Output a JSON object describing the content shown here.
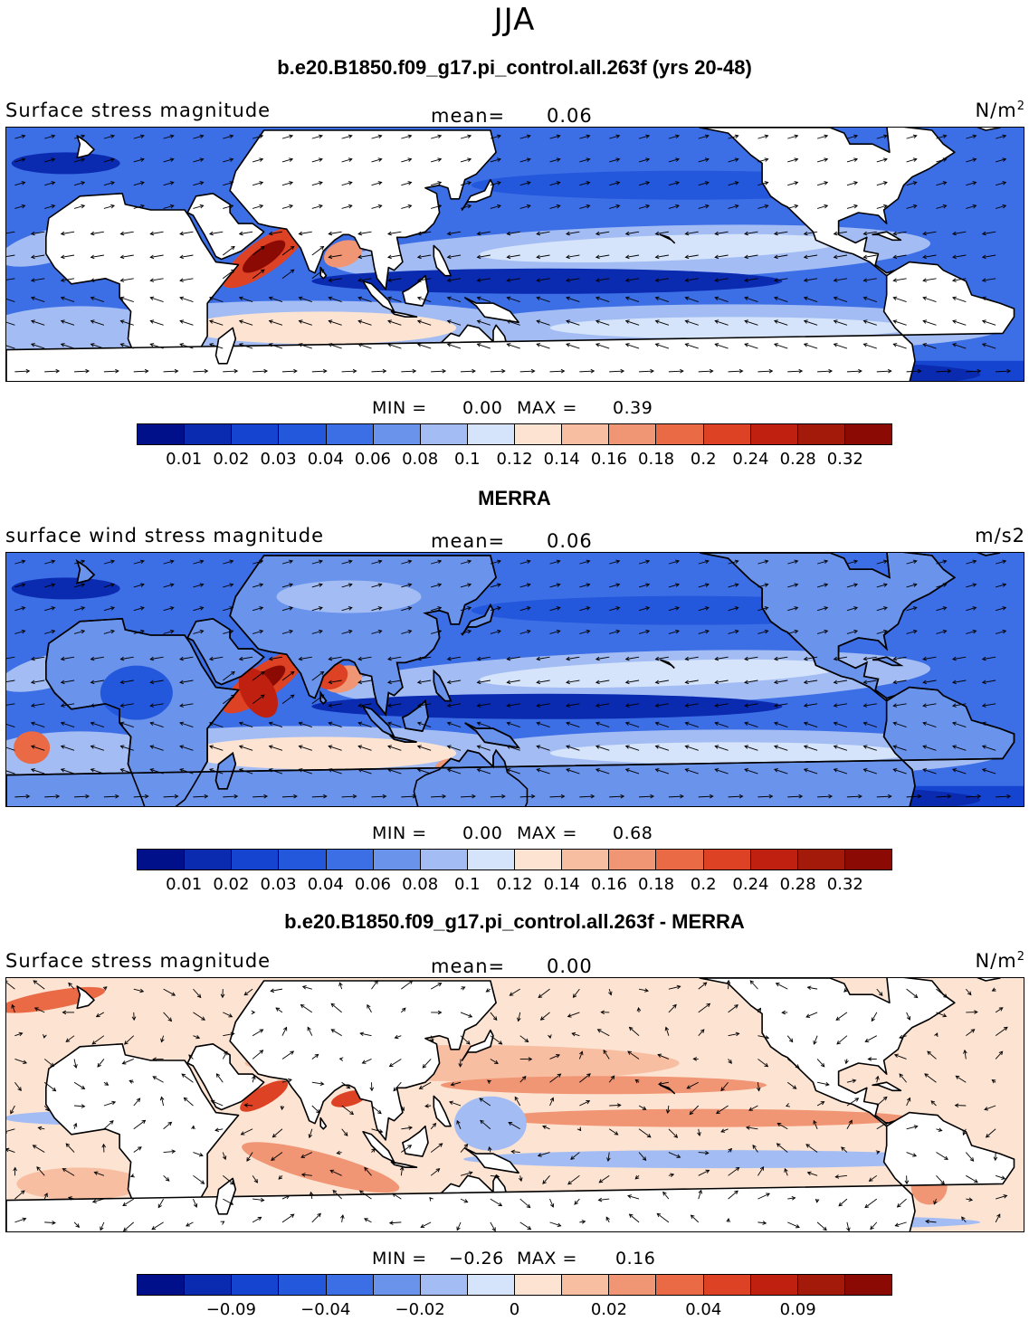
{
  "suptitle": "JJA",
  "panels": [
    {
      "title": "b.e20.B1850.f09_g17.pi_control.all.263f (yrs 20-48)",
      "left": "Surface stress magnitude",
      "mean_label": "mean=",
      "mean_value": "0.06",
      "units": "N/m",
      "units_sup": "2",
      "min_label": "MIN =",
      "min_value": "0.00",
      "max_label": "MAX =",
      "max_value": "0.39",
      "map_style": "model",
      "colorbar_labels": [
        "0.01",
        "0.02",
        "0.03",
        "0.04",
        "0.06",
        "0.08",
        "0.1",
        "0.12",
        "0.14",
        "0.16",
        "0.18",
        "0.2",
        "0.24",
        "0.28",
        "0.32"
      ]
    },
    {
      "title": "MERRA",
      "left": "surface wind stress magnitude",
      "mean_label": "mean=",
      "mean_value": "0.06",
      "units": "m/s2",
      "units_sup": "",
      "min_label": "MIN =",
      "min_value": "0.00",
      "max_label": "MAX =",
      "max_value": "0.68",
      "map_style": "obs",
      "colorbar_labels": [
        "0.01",
        "0.02",
        "0.03",
        "0.04",
        "0.06",
        "0.08",
        "0.1",
        "0.12",
        "0.14",
        "0.16",
        "0.18",
        "0.2",
        "0.24",
        "0.28",
        "0.32"
      ]
    },
    {
      "title": "b.e20.B1850.f09_g17.pi_control.all.263f - MERRA",
      "left": "Surface stress magnitude",
      "mean_label": "mean=",
      "mean_value": "0.00",
      "units": "N/m",
      "units_sup": "2",
      "min_label": "MIN =",
      "min_value": "−0.26",
      "max_label": "MAX =",
      "max_value": "0.16",
      "map_style": "diff",
      "colorbar_labels": [
        "−0.09",
        "−0.04",
        "−0.02",
        "0",
        "0.02",
        "0.04",
        "0.09"
      ]
    }
  ],
  "colormap": [
    "#00108a",
    "#0a2ab0",
    "#1444d0",
    "#2458dc",
    "#3c6ee6",
    "#6a93ec",
    "#a3bdf4",
    "#d5e4fa",
    "#fde3d2",
    "#f8bea2",
    "#f19674",
    "#ea6a46",
    "#de4224",
    "#bf2010",
    "#8c0a04"
  ],
  "colormap_diff": [
    "#00108a",
    "#0a2ab0",
    "#1444d0",
    "#2458dc",
    "#3c6ee6",
    "#6a93ec",
    "#a3bdf4",
    "#d5e4fa",
    "#fde3d2",
    "#f8bea2",
    "#f19674",
    "#ea6a46",
    "#de4224",
    "#bf2010",
    "#8c0a04",
    "#8c0a04"
  ]
}
